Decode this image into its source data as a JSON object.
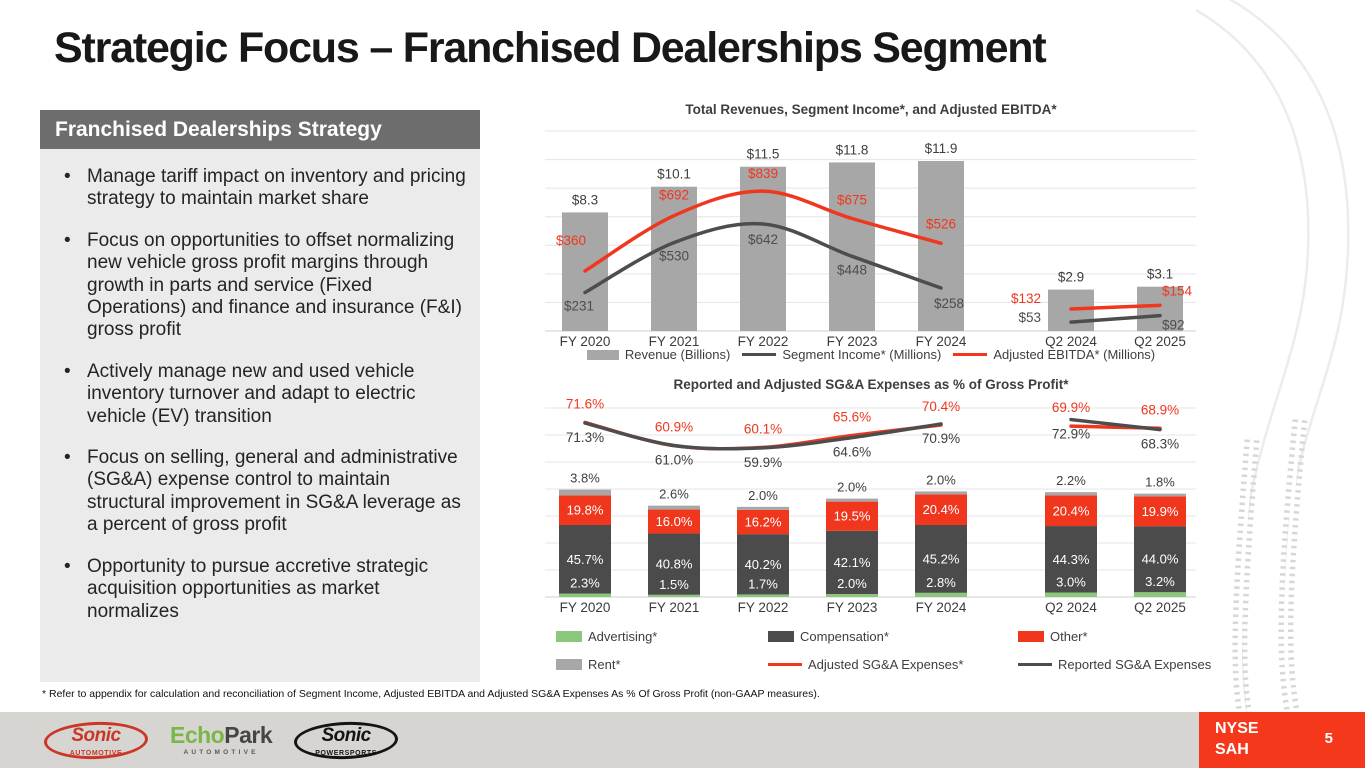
{
  "slide": {
    "title": "Strategic Focus – Franchised Dealerships Segment",
    "footnote": "* Refer to appendix for calculation and reconciliation of Segment Income, Adjusted EBITDA and Adjusted SG&A Expenses As % Of Gross Profit (non-GAAP measures).",
    "page_number": "5",
    "ticker": {
      "line1": "NYSE",
      "line2": "SAH"
    },
    "logos": {
      "sonic_automotive": {
        "name": "Sonic",
        "sub": "Automotive"
      },
      "echopark": {
        "part1": "Echo",
        "part2": "Park",
        "sub": "AUTOMOTIVE"
      },
      "sonic_powersports": {
        "name": "Sonic",
        "sub": "Powersports"
      }
    }
  },
  "strategy_panel": {
    "header": "Franchised Dealerships Strategy",
    "bullets": [
      "Manage tariff impact on inventory and pricing strategy to maintain market share",
      "Focus on opportunities to offset normalizing new vehicle gross profit margins through growth in parts and service (Fixed Operations) and finance and insurance (F&I) gross profit",
      "Actively manage new and used vehicle inventory turnover and adapt to electric vehicle (EV) transition",
      "Focus on selling, general and administrative (SG&A) expense control to maintain structural improvement in SG&A leverage as a percent of gross profit",
      "Opportunity to pursue accretive strategic acquisition opportunities as market normalizes"
    ]
  },
  "colors": {
    "accent_red": "#F0371E",
    "bar_gray": "#A7A7A7",
    "dark_gray": "#4B4B4B",
    "green": "#8CC87B",
    "panel_header_gray": "#6D6D6D",
    "panel_bg": "#EBEBEB",
    "footer_bg": "#D6D5D2",
    "badge_red": "#F5371B"
  },
  "chart_data": [
    {
      "type": "bar",
      "subtype": "bar+line combo",
      "title": "Total Revenues, Segment Income*, and Adjusted EBITDA*",
      "categories": [
        "FY 2020",
        "FY 2021",
        "FY 2022",
        "FY 2023",
        "FY 2024",
        "Q2 2024",
        "Q2 2025"
      ],
      "group_gap_after_index": 4,
      "bar_axis": {
        "max": 14
      },
      "line_axis": {
        "max": 1200
      },
      "grid": true,
      "legend_position": "bottom",
      "series": [
        {
          "name": "Revenue (Billions)",
          "type": "bar",
          "color": "#A7A7A7",
          "values": [
            8.3,
            10.1,
            11.5,
            11.8,
            11.9,
            2.9,
            3.1
          ],
          "labels": [
            "$8.3",
            "$10.1",
            "$11.5",
            "$11.8",
            "$11.9",
            "$2.9",
            "$3.1"
          ]
        },
        {
          "name": "Segment Income* (Millions)",
          "type": "line",
          "color": "#4D4D4D",
          "values": [
            231,
            530,
            642,
            448,
            258,
            53,
            92
          ],
          "labels": [
            "$231",
            "$530",
            "$642",
            "$448",
            "$258",
            "$53",
            "$92"
          ]
        },
        {
          "name": "Adjusted EBITDA* (Millions)",
          "type": "line",
          "color": "#F0371E",
          "values": [
            360,
            692,
            839,
            675,
            526,
            132,
            154
          ],
          "labels": [
            "$360",
            "$692",
            "$839",
            "$675",
            "$526",
            "$132",
            "$154"
          ]
        }
      ]
    },
    {
      "type": "bar",
      "subtype": "stacked-bar+line",
      "title": "Reported and Adjusted SG&A Expenses as % of Gross Profit*",
      "categories": [
        "FY 2020",
        "FY 2021",
        "FY 2022",
        "FY 2023",
        "FY 2024",
        "Q2 2024",
        "Q2 2025"
      ],
      "group_gap_after_index": 4,
      "unit": "% of gross profit",
      "grid": true,
      "legend_position": "bottom",
      "bar_series": [
        {
          "name": "Advertising*",
          "color": "#8CC87B",
          "values": [
            2.3,
            1.5,
            1.7,
            2.0,
            2.8,
            3.0,
            3.2
          ],
          "labels": [
            "2.3%",
            "1.5%",
            "1.7%",
            "2.0%",
            "2.8%",
            "3.0%",
            "3.2%"
          ]
        },
        {
          "name": "Compensation*",
          "color": "#4B4B4B",
          "values": [
            45.7,
            40.8,
            40.2,
            42.1,
            45.2,
            44.3,
            44.0
          ],
          "labels": [
            "45.7%",
            "40.8%",
            "40.2%",
            "42.1%",
            "45.2%",
            "44.3%",
            "44.0%"
          ]
        },
        {
          "name": "Other*",
          "color": "#F0371E",
          "values": [
            19.8,
            16.0,
            16.2,
            19.5,
            20.4,
            20.4,
            19.9
          ],
          "labels": [
            "19.8%",
            "16.0%",
            "16.2%",
            "19.5%",
            "20.4%",
            "20.4%",
            "19.9%"
          ]
        },
        {
          "name": "Rent*",
          "color": "#A7A7A7",
          "values": [
            3.8,
            2.6,
            2.0,
            2.0,
            2.0,
            2.2,
            1.8
          ],
          "labels": [
            "3.8%",
            "2.6%",
            "2.0%",
            "2.0%",
            "2.0%",
            "2.2%",
            "1.8%"
          ]
        }
      ],
      "line_series": [
        {
          "name": "Adjusted SG&A Expenses*",
          "color": "#F0371E",
          "values": [
            71.6,
            60.9,
            60.1,
            65.6,
            70.4,
            69.9,
            68.9
          ],
          "labels": [
            "71.6%",
            "60.9%",
            "60.1%",
            "65.6%",
            "70.4%",
            "69.9%",
            "68.9%"
          ]
        },
        {
          "name": "Reported SG&A Expenses",
          "color": "#4D4D4D",
          "values": [
            71.3,
            61.0,
            59.9,
            64.6,
            70.9,
            72.9,
            68.3
          ],
          "labels": [
            "71.3%",
            "61.0%",
            "59.9%",
            "64.6%",
            "70.9%",
            "72.9%",
            "68.3%"
          ]
        }
      ]
    }
  ]
}
